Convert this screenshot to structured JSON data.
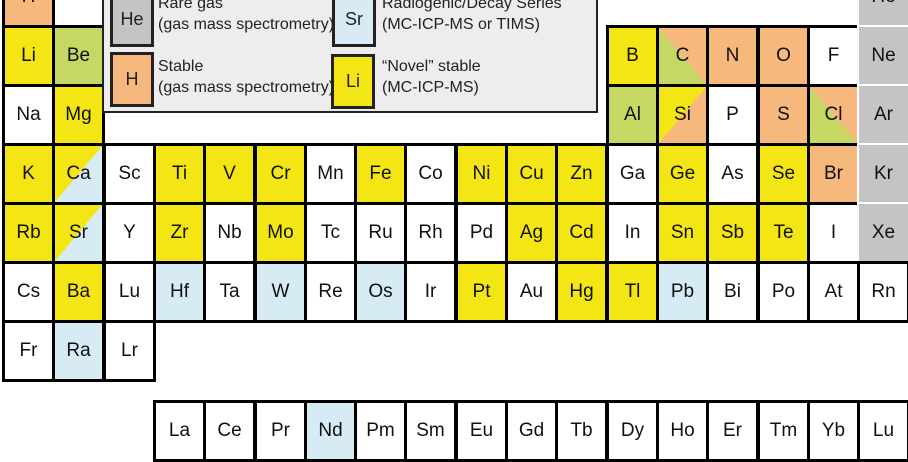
{
  "colors": {
    "novel_stable": "#f4e514",
    "stable": "#f6b87c",
    "stable_alt": "#c6d764",
    "radiogenic": "#d7ebf5",
    "rare_gas": "#c4c4c4"
  },
  "legend": [
    {
      "symbol": "He",
      "cls": "r",
      "line1": "Rare gas",
      "line2": "(gas mass spectrometry)"
    },
    {
      "symbol": "Sr",
      "cls": "b",
      "line1": "Radiogenic/Decay Series",
      "line2": "(MC-ICP-MS or TIMS)"
    },
    {
      "symbol": "H",
      "cls": "o",
      "line1": "Stable",
      "line2": "(gas mass spectrometry)"
    },
    {
      "symbol": "Li",
      "cls": "y",
      "line1": "“Novel” stable",
      "line2": "(MC-ICP-MS)"
    }
  ],
  "table": {
    "rows": [
      [
        [
          "H",
          "o"
        ],
        null,
        null,
        null,
        null,
        null,
        null,
        null,
        null,
        null,
        null,
        null,
        null,
        null,
        null,
        null,
        null,
        [
          "He",
          "r"
        ]
      ],
      [
        [
          "Li",
          "y"
        ],
        [
          "Be",
          "g"
        ],
        null,
        null,
        null,
        null,
        null,
        null,
        null,
        null,
        null,
        null,
        [
          "B",
          "y"
        ],
        [
          "C",
          "go"
        ],
        [
          "N",
          "o"
        ],
        [
          "O",
          "o"
        ],
        [
          "F",
          "w"
        ],
        [
          "Ne",
          "r"
        ]
      ],
      [
        [
          "Na",
          "w"
        ],
        [
          "Mg",
          "y"
        ],
        null,
        null,
        null,
        null,
        null,
        null,
        null,
        null,
        null,
        null,
        [
          "Al",
          "g"
        ],
        [
          "Si",
          "yo"
        ],
        [
          "P",
          "w"
        ],
        [
          "S",
          "o"
        ],
        [
          "Cl",
          "go"
        ],
        [
          "Ar",
          "r"
        ]
      ],
      [
        [
          "K",
          "y"
        ],
        [
          "Ca",
          "yb"
        ],
        [
          "Sc",
          "w"
        ],
        [
          "Ti",
          "y"
        ],
        [
          "V",
          "y"
        ],
        [
          "Cr",
          "y"
        ],
        [
          "Mn",
          "w"
        ],
        [
          "Fe",
          "y"
        ],
        [
          "Co",
          "w"
        ],
        [
          "Ni",
          "y"
        ],
        [
          "Cu",
          "y"
        ],
        [
          "Zn",
          "y"
        ],
        [
          "Ga",
          "w"
        ],
        [
          "Ge",
          "y"
        ],
        [
          "As",
          "w"
        ],
        [
          "Se",
          "y"
        ],
        [
          "Br",
          "o"
        ],
        [
          "Kr",
          "r"
        ]
      ],
      [
        [
          "Rb",
          "y"
        ],
        [
          "Sr",
          "yb"
        ],
        [
          "Y",
          "w"
        ],
        [
          "Zr",
          "y"
        ],
        [
          "Nb",
          "w"
        ],
        [
          "Mo",
          "y"
        ],
        [
          "Tc",
          "w"
        ],
        [
          "Ru",
          "w"
        ],
        [
          "Rh",
          "w"
        ],
        [
          "Pd",
          "w"
        ],
        [
          "Ag",
          "y"
        ],
        [
          "Cd",
          "y"
        ],
        [
          "In",
          "w"
        ],
        [
          "Sn",
          "y"
        ],
        [
          "Sb",
          "y"
        ],
        [
          "Te",
          "y"
        ],
        [
          "I",
          "w"
        ],
        [
          "Xe",
          "r"
        ]
      ],
      [
        [
          "Cs",
          "w"
        ],
        [
          "Ba",
          "y"
        ],
        [
          "Lu",
          "w"
        ],
        [
          "Hf",
          "b"
        ],
        [
          "Ta",
          "w"
        ],
        [
          "W",
          "b"
        ],
        [
          "Re",
          "w"
        ],
        [
          "Os",
          "b"
        ],
        [
          "Ir",
          "w"
        ],
        [
          "Pt",
          "y"
        ],
        [
          "Au",
          "w"
        ],
        [
          "Hg",
          "y"
        ],
        [
          "Tl",
          "y"
        ],
        [
          "Pb",
          "b"
        ],
        [
          "Bi",
          "w"
        ],
        [
          "Po",
          "w"
        ],
        [
          "At",
          "w"
        ],
        [
          "Rn",
          "w"
        ]
      ],
      [
        [
          "Fr",
          "w"
        ],
        [
          "Ra",
          "b"
        ],
        [
          "Lr",
          "w"
        ]
      ]
    ],
    "lanthanides": [
      [
        "La",
        "w"
      ],
      [
        "Ce",
        "w"
      ],
      [
        "Pr",
        "w"
      ],
      [
        "Nd",
        "b"
      ],
      [
        "Pm",
        "w"
      ],
      [
        "Sm",
        "w"
      ],
      [
        "Eu",
        "w"
      ],
      [
        "Gd",
        "w"
      ],
      [
        "Tb",
        "w"
      ],
      [
        "Dy",
        "w"
      ],
      [
        "Ho",
        "w"
      ],
      [
        "Er",
        "w"
      ],
      [
        "Tm",
        "w"
      ],
      [
        "Yb",
        "w"
      ],
      [
        "Lu",
        "w"
      ]
    ]
  }
}
